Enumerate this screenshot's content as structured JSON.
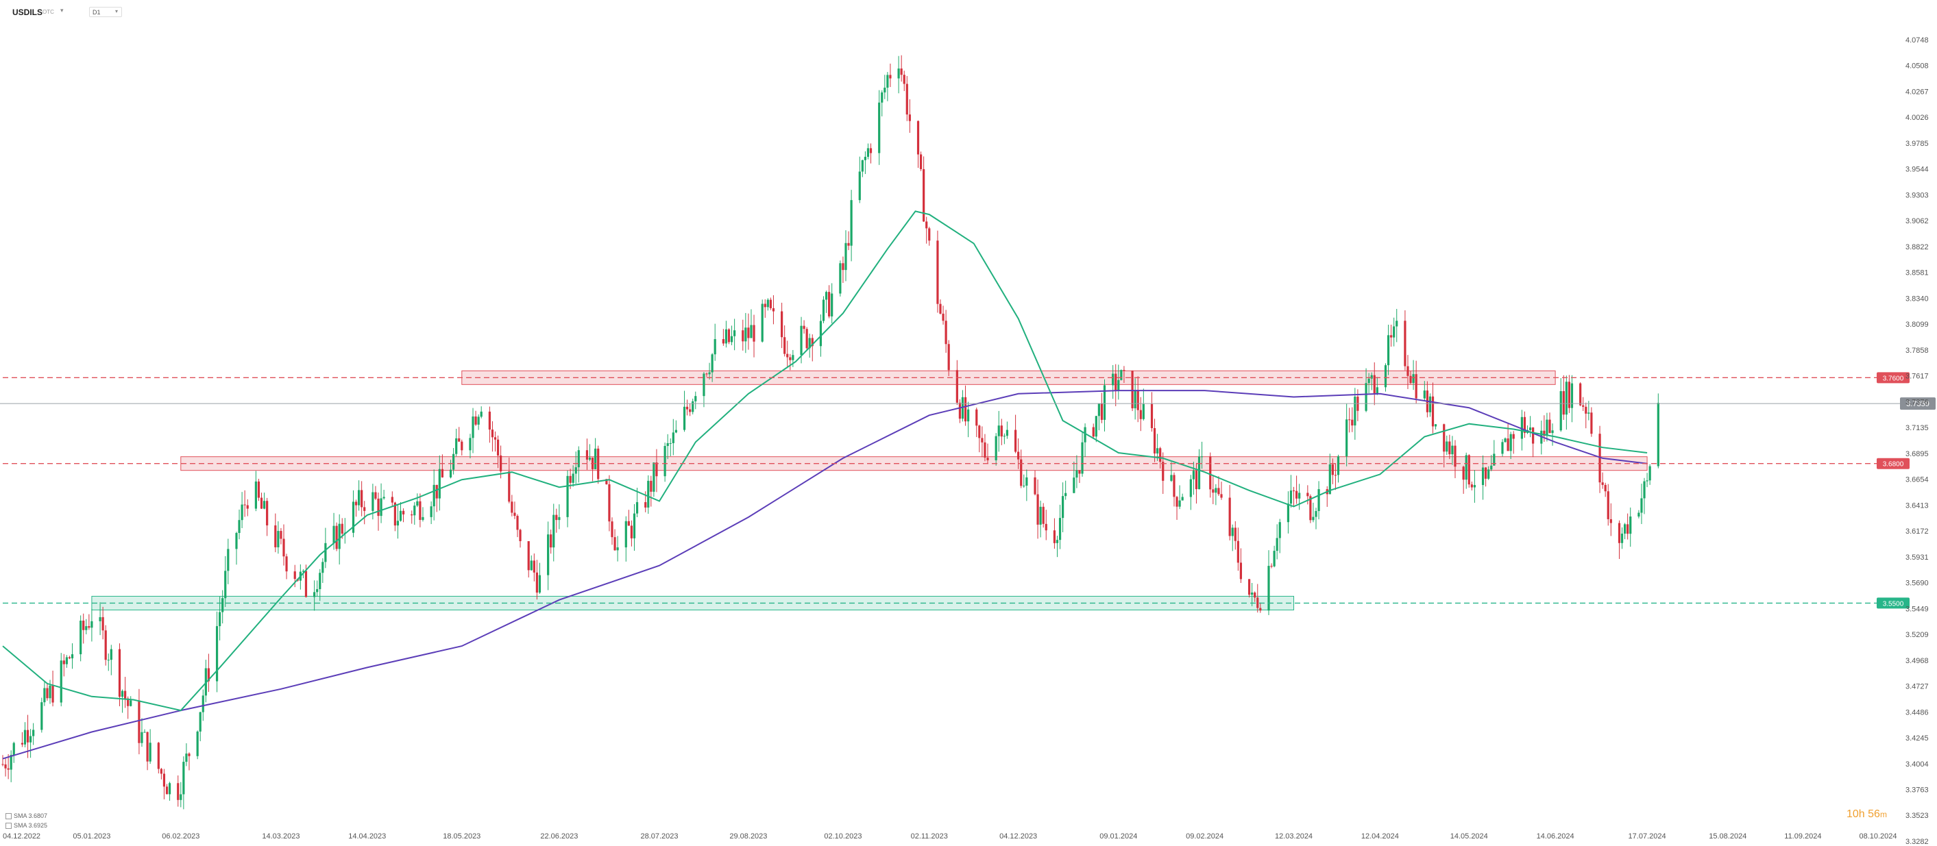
{
  "toolbar": {
    "symbol": "USDILS",
    "symbol_sub": "OTC",
    "timeframe": "D1"
  },
  "indicators": [
    {
      "label": "SMA",
      "value": "3.6807",
      "color": "#21b07e"
    },
    {
      "label": "SMA",
      "value": "3.6925",
      "color": "#5b3db8"
    }
  ],
  "countdown": {
    "hours": "10h",
    "minutes": "56",
    "unit": "m"
  },
  "chart_data": {
    "type": "candlestick",
    "title": "",
    "y_axis_ticks": [
      "4.0748",
      "4.0508",
      "4.0267",
      "4.0026",
      "3.9785",
      "3.9544",
      "3.9303",
      "3.9062",
      "3.8822",
      "3.8581",
      "3.8340",
      "3.8099",
      "3.7858",
      "3.7617",
      "3.7376",
      "3.7135",
      "3.6895",
      "3.6654",
      "3.6413",
      "3.6172",
      "3.5931",
      "3.5690",
      "3.5449",
      "3.5209",
      "3.4968",
      "3.4727",
      "3.4486",
      "3.4245",
      "3.4004",
      "3.3763",
      "3.3523",
      "3.3282"
    ],
    "x_axis_ticks": [
      "04.12.2022",
      "05.01.2023",
      "06.02.2023",
      "14.03.2023",
      "14.04.2023",
      "18.05.2023",
      "22.06.2023",
      "28.07.2023",
      "29.08.2023",
      "02.10.2023",
      "02.11.2023",
      "04.12.2023",
      "09.01.2024",
      "09.02.2024",
      "12.03.2024",
      "12.04.2024",
      "14.05.2024",
      "14.06.2024",
      "17.07.2024",
      "15.08.2024",
      "11.09.2024",
      "08.10.2024"
    ],
    "ylim": [
      3.3282,
      4.0748
    ],
    "current_price": "3.7359",
    "colors": {
      "up": "#1ba868",
      "down": "#d4303c"
    },
    "levels": [
      {
        "label": "3.7600",
        "value": 3.76,
        "color": "#e0505a"
      },
      {
        "label": "3.6800",
        "value": 3.68,
        "color": "#e0505a"
      },
      {
        "label": "3.5500",
        "value": 3.55,
        "color": "#27b589"
      }
    ],
    "zones": [
      {
        "center": 3.76,
        "from_date": "18.05.2023",
        "to_date": "14.06.2024",
        "color": "#e0505a"
      },
      {
        "center": 3.68,
        "from_date": "06.02.2023",
        "to_date": "17.07.2024",
        "color": "#e0505a"
      },
      {
        "center": 3.55,
        "from_date": "05.01.2023",
        "to_date": "12.03.2024",
        "color": "#27b589"
      }
    ],
    "sma_fast_path": [
      [
        "04.12.2022",
        3.51
      ],
      [
        "20.12.2022",
        3.475
      ],
      [
        "05.01.2023",
        3.463
      ],
      [
        "20.01.2023",
        3.46
      ],
      [
        "06.02.2023",
        3.45
      ],
      [
        "20.02.2023",
        3.49
      ],
      [
        "14.03.2023",
        3.555
      ],
      [
        "28.03.2023",
        3.595
      ],
      [
        "14.04.2023",
        3.632
      ],
      [
        "02.05.2023",
        3.648
      ],
      [
        "18.05.2023",
        3.665
      ],
      [
        "05.06.2023",
        3.672
      ],
      [
        "22.06.2023",
        3.658
      ],
      [
        "10.07.2023",
        3.665
      ],
      [
        "28.07.2023",
        3.645
      ],
      [
        "10.08.2023",
        3.7
      ],
      [
        "29.08.2023",
        3.745
      ],
      [
        "15.09.2023",
        3.775
      ],
      [
        "02.10.2023",
        3.82
      ],
      [
        "18.10.2023",
        3.88
      ],
      [
        "28.10.2023",
        3.915
      ],
      [
        "02.11.2023",
        3.912
      ],
      [
        "18.11.2023",
        3.885
      ],
      [
        "04.12.2023",
        3.815
      ],
      [
        "20.12.2023",
        3.72
      ],
      [
        "09.01.2024",
        3.69
      ],
      [
        "25.01.2024",
        3.685
      ],
      [
        "09.02.2024",
        3.672
      ],
      [
        "25.02.2024",
        3.655
      ],
      [
        "12.03.2024",
        3.64
      ],
      [
        "25.03.2024",
        3.655
      ],
      [
        "12.04.2024",
        3.67
      ],
      [
        "28.04.2024",
        3.705
      ],
      [
        "14.05.2024",
        3.717
      ],
      [
        "30.05.2024",
        3.712
      ],
      [
        "14.06.2024",
        3.705
      ],
      [
        "01.07.2024",
        3.695
      ],
      [
        "17.07.2024",
        3.69
      ]
    ],
    "sma_slow_path": [
      [
        "04.12.2022",
        3.405
      ],
      [
        "05.01.2023",
        3.43
      ],
      [
        "06.02.2023",
        3.45
      ],
      [
        "14.03.2023",
        3.47
      ],
      [
        "14.04.2023",
        3.49
      ],
      [
        "18.05.2023",
        3.51
      ],
      [
        "22.06.2023",
        3.553
      ],
      [
        "28.07.2023",
        3.585
      ],
      [
        "29.08.2023",
        3.63
      ],
      [
        "02.10.2023",
        3.685
      ],
      [
        "02.11.2023",
        3.725
      ],
      [
        "04.12.2023",
        3.745
      ],
      [
        "09.01.2024",
        3.748
      ],
      [
        "09.02.2024",
        3.748
      ],
      [
        "12.03.2024",
        3.742
      ],
      [
        "12.04.2024",
        3.745
      ],
      [
        "14.05.2024",
        3.732
      ],
      [
        "14.06.2024",
        3.7
      ],
      [
        "01.07.2024",
        3.685
      ],
      [
        "17.07.2024",
        3.68
      ]
    ],
    "price_path": [
      [
        "04.12.2022",
        3.4
      ],
      [
        "12.12.2022",
        3.43
      ],
      [
        "20.12.2022",
        3.46
      ],
      [
        "28.12.2022",
        3.5
      ],
      [
        "05.01.2023",
        3.54
      ],
      [
        "12.01.2023",
        3.5
      ],
      [
        "20.01.2023",
        3.44
      ],
      [
        "28.01.2023",
        3.4
      ],
      [
        "04.02.2023",
        3.37
      ],
      [
        "10.02.2023",
        3.42
      ],
      [
        "17.02.2023",
        3.5
      ],
      [
        "24.02.2023",
        3.6
      ],
      [
        "03.03.2023",
        3.66
      ],
      [
        "10.03.2023",
        3.62
      ],
      [
        "14.03.2023",
        3.6
      ],
      [
        "24.03.2023",
        3.56
      ],
      [
        "31.03.2023",
        3.6
      ],
      [
        "07.04.2023",
        3.63
      ],
      [
        "14.04.2023",
        3.65
      ],
      [
        "24.04.2023",
        3.63
      ],
      [
        "02.05.2023",
        3.64
      ],
      [
        "10.05.2023",
        3.66
      ],
      [
        "18.05.2023",
        3.7
      ],
      [
        "25.05.2023",
        3.74
      ],
      [
        "01.06.2023",
        3.68
      ],
      [
        "08.06.2023",
        3.6
      ],
      [
        "15.06.2023",
        3.57
      ],
      [
        "22.06.2023",
        3.64
      ],
      [
        "29.06.2023",
        3.7
      ],
      [
        "06.07.2023",
        3.68
      ],
      [
        "13.07.2023",
        3.6
      ],
      [
        "20.07.2023",
        3.63
      ],
      [
        "28.07.2023",
        3.68
      ],
      [
        "04.08.2023",
        3.71
      ],
      [
        "11.08.2023",
        3.76
      ],
      [
        "18.08.2023",
        3.79
      ],
      [
        "29.08.2023",
        3.8
      ],
      [
        "05.09.2023",
        3.82
      ],
      [
        "12.09.2023",
        3.79
      ],
      [
        "20.09.2023",
        3.8
      ],
      [
        "27.09.2023",
        3.83
      ],
      [
        "02.10.2023",
        3.86
      ],
      [
        "06.10.2023",
        3.93
      ],
      [
        "12.10.2023",
        3.98
      ],
      [
        "18.10.2023",
        4.04
      ],
      [
        "22.10.2023",
        4.06
      ],
      [
        "26.10.2023",
        4.0
      ],
      [
        "30.10.2023",
        3.94
      ],
      [
        "02.11.2023",
        3.88
      ],
      [
        "06.11.2023",
        3.82
      ],
      [
        "10.11.2023",
        3.76
      ],
      [
        "15.11.2023",
        3.72
      ],
      [
        "22.11.2023",
        3.69
      ],
      [
        "28.11.2023",
        3.72
      ],
      [
        "04.12.2023",
        3.68
      ],
      [
        "10.12.2023",
        3.64
      ],
      [
        "16.12.2023",
        3.61
      ],
      [
        "22.12.2023",
        3.65
      ],
      [
        "28.12.2023",
        3.7
      ],
      [
        "02.01.2024",
        3.73
      ],
      [
        "09.01.2024",
        3.76
      ],
      [
        "15.01.2024",
        3.74
      ],
      [
        "22.01.2024",
        3.7
      ],
      [
        "29.01.2024",
        3.65
      ],
      [
        "04.02.2024",
        3.66
      ],
      [
        "09.02.2024",
        3.68
      ],
      [
        "15.02.2024",
        3.64
      ],
      [
        "20.02.2024",
        3.6
      ],
      [
        "26.02.2024",
        3.55
      ],
      [
        "01.03.2024",
        3.56
      ],
      [
        "06.03.2024",
        3.62
      ],
      [
        "12.03.2024",
        3.65
      ],
      [
        "18.03.2024",
        3.64
      ],
      [
        "26.03.2024",
        3.67
      ],
      [
        "02.04.2024",
        3.73
      ],
      [
        "08.04.2024",
        3.75
      ],
      [
        "12.04.2024",
        3.77
      ],
      [
        "18.04.2024",
        3.8
      ],
      [
        "24.04.2024",
        3.76
      ],
      [
        "30.04.2024",
        3.73
      ],
      [
        "06.05.2024",
        3.7
      ],
      [
        "14.05.2024",
        3.67
      ],
      [
        "20.05.2024",
        3.66
      ],
      [
        "26.05.2024",
        3.69
      ],
      [
        "01.06.2024",
        3.72
      ],
      [
        "08.06.2024",
        3.7
      ],
      [
        "14.06.2024",
        3.73
      ],
      [
        "20.06.2024",
        3.75
      ],
      [
        "26.06.2024",
        3.73
      ],
      [
        "01.07.2024",
        3.66
      ],
      [
        "05.07.2024",
        3.6
      ],
      [
        "09.07.2024",
        3.62
      ],
      [
        "13.07.2024",
        3.64
      ],
      [
        "17.07.2024",
        3.66
      ],
      [
        "19.07.2024",
        3.7
      ],
      [
        "21.07.2024",
        3.7359
      ]
    ]
  }
}
